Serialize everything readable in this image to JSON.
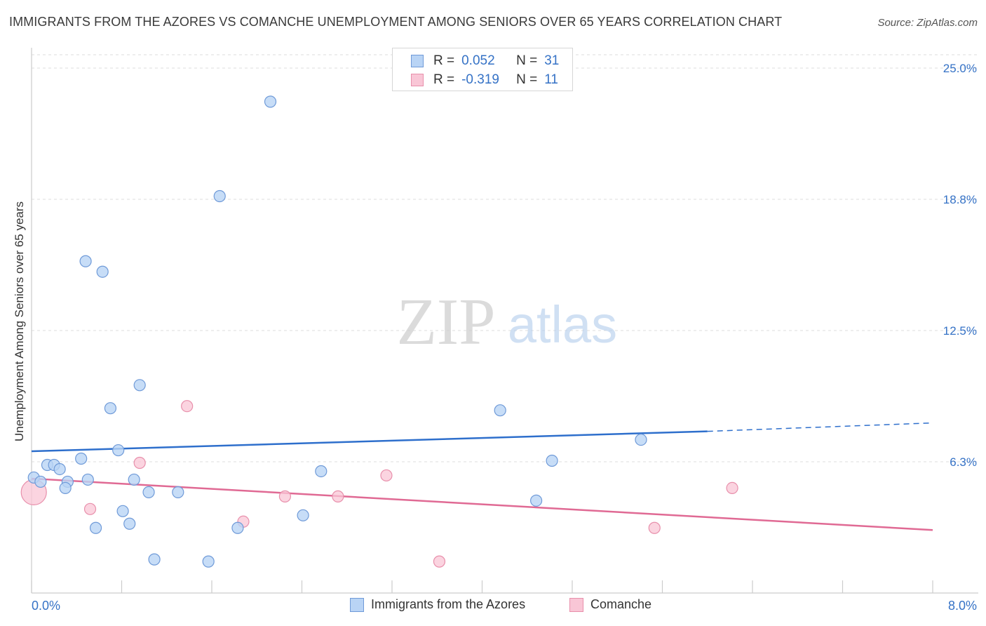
{
  "header": {
    "title": "IMMIGRANTS FROM THE AZORES VS COMANCHE UNEMPLOYMENT AMONG SENIORS OVER 65 YEARS CORRELATION CHART",
    "source": "Source: ZipAtlas.com"
  },
  "watermark": {
    "zip": "ZIP",
    "atlas": "atlas"
  },
  "legend": {
    "series1": {
      "r_label": "R =",
      "r_value": "0.052",
      "n_label": "N =",
      "n_value": "31"
    },
    "series2": {
      "r_label": "R =",
      "r_value": "-0.319",
      "n_label": "N =",
      "n_value": "11"
    }
  },
  "bottom_legend": {
    "series1_label": "Immigrants from the Azores",
    "series2_label": "Comanche"
  },
  "colors": {
    "series1_fill": "#b9d4f5",
    "series1_stroke": "#6f9ad8",
    "series1_line": "#2e6fcc",
    "series2_fill": "#f9c6d6",
    "series2_stroke": "#e88fab",
    "series2_line": "#e06a94",
    "axis_text": "#3572c6",
    "grid": "#dcdcdc"
  },
  "chart_data": {
    "type": "scatter",
    "title": "IMMIGRANTS FROM THE AZORES VS COMANCHE UNEMPLOYMENT AMONG SENIORS OVER 65 YEARS CORRELATION CHART",
    "xlabel": "",
    "ylabel": "Unemployment Among Seniors over 65 years",
    "xlim": [
      0,
      8.0
    ],
    "ylim": [
      0,
      25.0
    ],
    "x_tick_labels": [
      {
        "value": 0,
        "label": "0.0%"
      },
      {
        "value": 8.0,
        "label": "8.0%"
      }
    ],
    "y_tick_labels": [
      {
        "value": 6.25,
        "label": "6.3%"
      },
      {
        "value": 12.5,
        "label": "12.5%"
      },
      {
        "value": 18.75,
        "label": "18.8%"
      },
      {
        "value": 25.0,
        "label": "25.0%"
      }
    ],
    "series": [
      {
        "name": "Immigrants from the Azores",
        "points": [
          {
            "x": 0.02,
            "y": 5.5
          },
          {
            "x": 0.08,
            "y": 5.3
          },
          {
            "x": 0.14,
            "y": 6.1
          },
          {
            "x": 0.2,
            "y": 6.1
          },
          {
            "x": 0.25,
            "y": 5.9
          },
          {
            "x": 0.32,
            "y": 5.3
          },
          {
            "x": 0.3,
            "y": 5.0
          },
          {
            "x": 0.44,
            "y": 6.4
          },
          {
            "x": 0.5,
            "y": 5.4
          },
          {
            "x": 0.48,
            "y": 15.8
          },
          {
            "x": 0.63,
            "y": 15.3
          },
          {
            "x": 0.7,
            "y": 8.8
          },
          {
            "x": 0.77,
            "y": 6.8
          },
          {
            "x": 0.57,
            "y": 3.1
          },
          {
            "x": 0.81,
            "y": 3.9
          },
          {
            "x": 0.87,
            "y": 3.3
          },
          {
            "x": 0.91,
            "y": 5.4
          },
          {
            "x": 0.96,
            "y": 9.9
          },
          {
            "x": 1.04,
            "y": 4.8
          },
          {
            "x": 1.09,
            "y": 1.6
          },
          {
            "x": 1.3,
            "y": 4.8
          },
          {
            "x": 1.57,
            "y": 1.5
          },
          {
            "x": 1.67,
            "y": 18.9
          },
          {
            "x": 1.83,
            "y": 3.1
          },
          {
            "x": 2.12,
            "y": 23.4
          },
          {
            "x": 2.41,
            "y": 3.7
          },
          {
            "x": 2.57,
            "y": 5.8
          },
          {
            "x": 4.16,
            "y": 8.7
          },
          {
            "x": 4.48,
            "y": 4.4
          },
          {
            "x": 4.62,
            "y": 6.3
          },
          {
            "x": 5.41,
            "y": 7.3
          }
        ],
        "trend": {
          "x": [
            0,
            6.0
          ],
          "y": [
            6.75,
            7.7
          ],
          "dashed_extension": {
            "x": [
              6.0,
              8.0
            ],
            "y": [
              7.7,
              8.1
            ]
          }
        }
      },
      {
        "name": "Comanche",
        "points": [
          {
            "x": 0.02,
            "y": 4.8
          },
          {
            "x": 0.52,
            "y": 4.0
          },
          {
            "x": 0.96,
            "y": 6.2
          },
          {
            "x": 1.38,
            "y": 8.9
          },
          {
            "x": 1.88,
            "y": 3.4
          },
          {
            "x": 2.25,
            "y": 4.6
          },
          {
            "x": 2.72,
            "y": 4.6
          },
          {
            "x": 3.15,
            "y": 5.6
          },
          {
            "x": 3.62,
            "y": 1.5
          },
          {
            "x": 5.53,
            "y": 3.1
          },
          {
            "x": 6.22,
            "y": 5.0
          }
        ],
        "trend": {
          "x": [
            0,
            8.0
          ],
          "y": [
            5.45,
            3.0
          ]
        }
      }
    ]
  }
}
